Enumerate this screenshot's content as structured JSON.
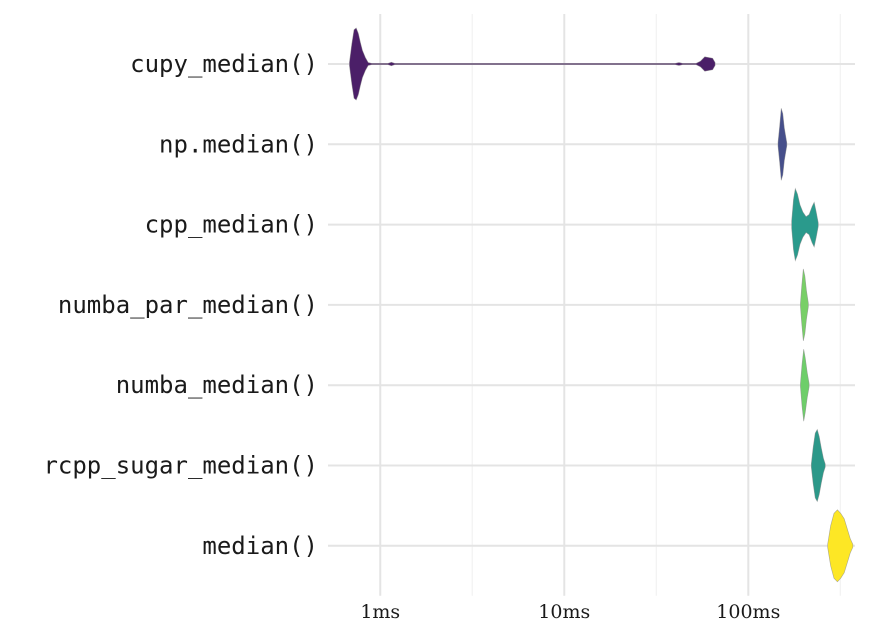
{
  "chart_data": {
    "type": "violin",
    "title": "",
    "xlabel": "",
    "ylabel": "",
    "x_scale": "log10",
    "x_unit": "ms",
    "xlim_ms": [
      0.52,
      380
    ],
    "x_ticks": [
      {
        "value_ms": 1,
        "label": "1ms"
      },
      {
        "value_ms": 10,
        "label": "10ms"
      },
      {
        "value_ms": 100,
        "label": "100ms"
      }
    ],
    "x_minor_ticks_ms": [
      3.16,
      31.6,
      316
    ],
    "grid": true,
    "legend": "none",
    "categories": [
      "cupy_median()",
      "np.median()",
      "cpp_median()",
      "numba_par_median()",
      "numba_median()",
      "rcpp_sugar_median()",
      "median()"
    ],
    "series": [
      {
        "category": "cupy_median()",
        "color": "#4b1f68",
        "range_ms": [
          0.68,
          66
        ],
        "density": [
          {
            "x_ms": 0.68,
            "w": 0.05
          },
          {
            "x_ms": 0.7,
            "w": 0.55
          },
          {
            "x_ms": 0.72,
            "w": 0.95
          },
          {
            "x_ms": 0.74,
            "w": 1.0
          },
          {
            "x_ms": 0.76,
            "w": 0.85
          },
          {
            "x_ms": 0.78,
            "w": 0.6
          },
          {
            "x_ms": 0.8,
            "w": 0.38
          },
          {
            "x_ms": 0.83,
            "w": 0.18
          },
          {
            "x_ms": 0.86,
            "w": 0.04
          },
          {
            "x_ms": 0.9,
            "w": 0.01
          },
          {
            "x_ms": 1.0,
            "w": 0.01
          },
          {
            "x_ms": 1.1,
            "w": 0.01
          },
          {
            "x_ms": 1.15,
            "w": 0.05
          },
          {
            "x_ms": 1.2,
            "w": 0.01
          },
          {
            "x_ms": 10,
            "w": 0.01
          },
          {
            "x_ms": 40,
            "w": 0.01
          },
          {
            "x_ms": 42,
            "w": 0.04
          },
          {
            "x_ms": 44,
            "w": 0.01
          },
          {
            "x_ms": 52,
            "w": 0.01
          },
          {
            "x_ms": 55,
            "w": 0.08
          },
          {
            "x_ms": 58,
            "w": 0.2
          },
          {
            "x_ms": 61,
            "w": 0.18
          },
          {
            "x_ms": 64,
            "w": 0.16
          },
          {
            "x_ms": 66,
            "w": 0.04
          }
        ]
      },
      {
        "category": "np.median()",
        "color": "#464f8b",
        "range_ms": [
          145,
          162
        ],
        "density": [
          {
            "x_ms": 145,
            "w": 0.05
          },
          {
            "x_ms": 148,
            "w": 0.5
          },
          {
            "x_ms": 151,
            "w": 1.0
          },
          {
            "x_ms": 154,
            "w": 0.85
          },
          {
            "x_ms": 157,
            "w": 0.45
          },
          {
            "x_ms": 160,
            "w": 0.2
          },
          {
            "x_ms": 162,
            "w": 0.04
          }
        ]
      },
      {
        "category": "cpp_median()",
        "color": "#2a9a8c",
        "range_ms": [
          172,
          240
        ],
        "density": [
          {
            "x_ms": 172,
            "w": 0.1
          },
          {
            "x_ms": 176,
            "w": 0.7
          },
          {
            "x_ms": 180,
            "w": 1.0
          },
          {
            "x_ms": 185,
            "w": 0.85
          },
          {
            "x_ms": 191,
            "w": 0.55
          },
          {
            "x_ms": 198,
            "w": 0.35
          },
          {
            "x_ms": 206,
            "w": 0.22
          },
          {
            "x_ms": 214,
            "w": 0.28
          },
          {
            "x_ms": 222,
            "w": 0.5
          },
          {
            "x_ms": 228,
            "w": 0.62
          },
          {
            "x_ms": 234,
            "w": 0.35
          },
          {
            "x_ms": 240,
            "w": 0.05
          }
        ]
      },
      {
        "category": "numba_par_median()",
        "color": "#78cf67",
        "range_ms": [
          192,
          212
        ],
        "density": [
          {
            "x_ms": 192,
            "w": 0.05
          },
          {
            "x_ms": 195,
            "w": 0.5
          },
          {
            "x_ms": 199,
            "w": 1.0
          },
          {
            "x_ms": 203,
            "w": 0.8
          },
          {
            "x_ms": 207,
            "w": 0.4
          },
          {
            "x_ms": 212,
            "w": 0.05
          }
        ]
      },
      {
        "category": "numba_median()",
        "color": "#6ece6a",
        "range_ms": [
          192,
          214
        ],
        "density": [
          {
            "x_ms": 192,
            "w": 0.05
          },
          {
            "x_ms": 196,
            "w": 0.6
          },
          {
            "x_ms": 200,
            "w": 1.0
          },
          {
            "x_ms": 204,
            "w": 0.75
          },
          {
            "x_ms": 209,
            "w": 0.35
          },
          {
            "x_ms": 214,
            "w": 0.05
          }
        ]
      },
      {
        "category": "rcpp_sugar_median()",
        "color": "#2c9889",
        "range_ms": [
          220,
          262
        ],
        "density": [
          {
            "x_ms": 220,
            "w": 0.05
          },
          {
            "x_ms": 225,
            "w": 0.5
          },
          {
            "x_ms": 231,
            "w": 0.9
          },
          {
            "x_ms": 237,
            "w": 1.0
          },
          {
            "x_ms": 243,
            "w": 0.8
          },
          {
            "x_ms": 249,
            "w": 0.5
          },
          {
            "x_ms": 256,
            "w": 0.2
          },
          {
            "x_ms": 262,
            "w": 0.04
          }
        ]
      },
      {
        "category": "median()",
        "color": "#fde725",
        "range_ms": [
          270,
          370
        ],
        "density": [
          {
            "x_ms": 270,
            "w": 0.05
          },
          {
            "x_ms": 280,
            "w": 0.55
          },
          {
            "x_ms": 292,
            "w": 0.9
          },
          {
            "x_ms": 305,
            "w": 1.0
          },
          {
            "x_ms": 318,
            "w": 0.9
          },
          {
            "x_ms": 332,
            "w": 0.75
          },
          {
            "x_ms": 346,
            "w": 0.45
          },
          {
            "x_ms": 358,
            "w": 0.2
          },
          {
            "x_ms": 370,
            "w": 0.04
          }
        ]
      }
    ]
  }
}
